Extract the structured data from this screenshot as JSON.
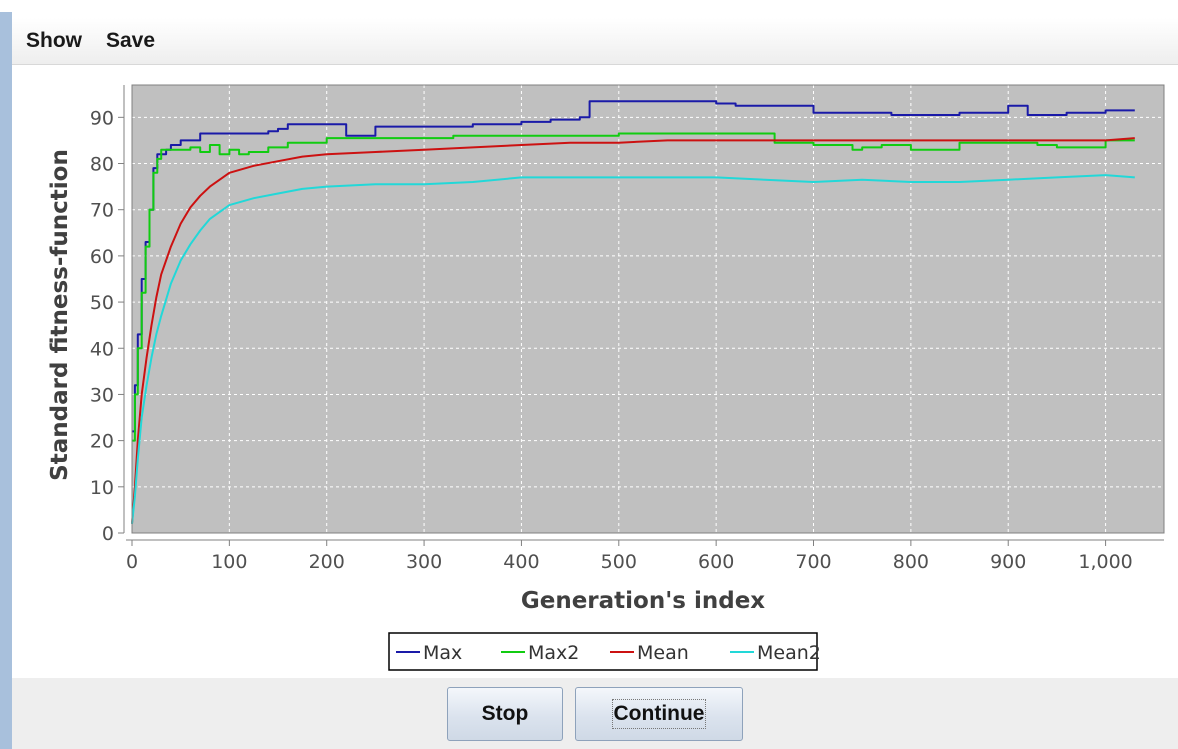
{
  "menu": {
    "items": [
      "Show",
      "Save"
    ]
  },
  "buttons": {
    "stop": "Stop",
    "continue": "Continue"
  },
  "chart_data": {
    "type": "line",
    "title": "",
    "xlabel": "Generation's index",
    "ylabel": "Standard fitness-function",
    "xlim": [
      0,
      1060
    ],
    "ylim": [
      0,
      97
    ],
    "xticks": [
      0,
      100,
      200,
      300,
      400,
      500,
      600,
      700,
      800,
      900,
      1000
    ],
    "xtick_labels": [
      "0",
      "100",
      "200",
      "300",
      "400",
      "500",
      "600",
      "700",
      "800",
      "900",
      "1,000"
    ],
    "yticks": [
      0,
      10,
      20,
      30,
      40,
      50,
      60,
      70,
      80,
      90
    ],
    "grid": true,
    "background": "#c0c0c0",
    "legend_position": "bottom",
    "series": [
      {
        "name": "Max",
        "color": "#1a1aa8",
        "step": true,
        "x": [
          0,
          3,
          6,
          10,
          14,
          18,
          22,
          26,
          30,
          35,
          40,
          50,
          70,
          100,
          120,
          140,
          150,
          160,
          180,
          200,
          220,
          250,
          300,
          350,
          400,
          430,
          460,
          470,
          520,
          600,
          620,
          650,
          700,
          730,
          780,
          850,
          880,
          900,
          920,
          960,
          1000,
          1030
        ],
        "y": [
          22,
          32,
          43,
          55,
          63,
          70,
          79,
          82,
          82,
          83,
          84,
          85,
          86.5,
          86.5,
          86.5,
          87,
          87.5,
          88.5,
          88.5,
          88.5,
          86,
          88,
          88,
          88.5,
          89,
          89.5,
          90,
          93.5,
          93.5,
          93,
          92.5,
          92.5,
          91,
          91,
          90.5,
          91,
          91,
          92.5,
          90.5,
          91,
          91.5,
          91.5
        ]
      },
      {
        "name": "Max2",
        "color": "#11cc11",
        "step": true,
        "x": [
          0,
          3,
          6,
          10,
          14,
          18,
          22,
          26,
          30,
          40,
          60,
          70,
          80,
          90,
          100,
          110,
          120,
          140,
          160,
          180,
          200,
          300,
          330,
          350,
          400,
          450,
          500,
          550,
          600,
          640,
          660,
          700,
          740,
          750,
          770,
          800,
          850,
          900,
          930,
          950,
          1000,
          1030
        ],
        "y": [
          20,
          30,
          40,
          52,
          62,
          70,
          78,
          81,
          83,
          83,
          83.5,
          82.5,
          84,
          82,
          83,
          82,
          82.5,
          83.5,
          84.5,
          84.5,
          85.5,
          85.5,
          86,
          86,
          86,
          86,
          86.5,
          86.5,
          86.5,
          86.5,
          84.5,
          84,
          83,
          83.5,
          84,
          83,
          84.5,
          84.5,
          84,
          83.5,
          85,
          85
        ]
      },
      {
        "name": "Mean",
        "color": "#cc1111",
        "step": false,
        "x": [
          0,
          3,
          6,
          10,
          15,
          20,
          25,
          30,
          40,
          50,
          60,
          70,
          80,
          100,
          125,
          150,
          175,
          200,
          250,
          300,
          350,
          400,
          450,
          500,
          550,
          600,
          650,
          700,
          750,
          800,
          850,
          900,
          950,
          1000,
          1030
        ],
        "y": [
          2,
          10,
          20,
          30,
          38,
          45,
          51,
          56,
          62,
          67,
          70.5,
          73,
          75,
          78,
          79.5,
          80.5,
          81.5,
          82,
          82.5,
          83,
          83.5,
          84,
          84.5,
          84.5,
          85,
          85,
          85,
          85,
          85,
          85,
          85,
          85,
          85,
          85,
          85.5
        ]
      },
      {
        "name": "Mean2",
        "color": "#22d8d8",
        "step": false,
        "x": [
          0,
          3,
          6,
          10,
          15,
          20,
          25,
          30,
          40,
          50,
          60,
          70,
          80,
          100,
          125,
          150,
          175,
          200,
          250,
          300,
          350,
          400,
          450,
          500,
          550,
          600,
          650,
          700,
          750,
          800,
          850,
          900,
          950,
          1000,
          1030
        ],
        "y": [
          2,
          8,
          16,
          25,
          32,
          38,
          43,
          47,
          54,
          59,
          62.5,
          65.5,
          68,
          71,
          72.5,
          73.5,
          74.5,
          75,
          75.5,
          75.5,
          76,
          77,
          77,
          77,
          77,
          77,
          76.5,
          76,
          76.5,
          76,
          76,
          76.5,
          77,
          77.5,
          77
        ]
      }
    ]
  }
}
